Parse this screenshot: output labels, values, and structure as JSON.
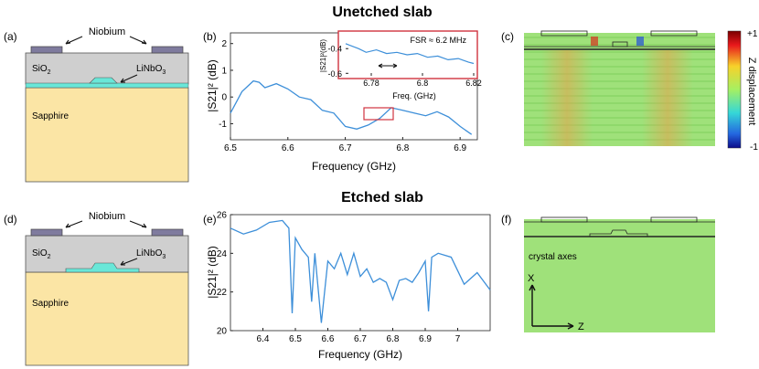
{
  "titles": {
    "top": "Unetched slab",
    "bottom": "Etched slab"
  },
  "panel_labels": {
    "a": "(a)",
    "b": "(b)",
    "c": "(c)",
    "d": "(d)",
    "e": "(e)",
    "f": "(f)"
  },
  "schematic": {
    "niobium": "Niobium",
    "sio2_main": "SiO",
    "sio2_sub": "2",
    "linbo3_main": "LiNbO",
    "linbo3_sub": "3",
    "sapphire": "Sapphire"
  },
  "colorbar": {
    "max": "+1",
    "min": "-1",
    "label": "Z displacement"
  },
  "crystal_axes": {
    "label": "crystal axes",
    "x": "X",
    "z": "Z"
  },
  "inset": {
    "fsr": "FSR ≈ 6.2 MHz",
    "xlabel": "Freq. (GHz)",
    "ylabel": "|S21|²(dB)"
  },
  "colors": {
    "line": "#3d8fd9",
    "inset_frame": "#d0343f",
    "niobium": "#7f7b9e",
    "sio2": "#cfcfcf",
    "linbo3": "#69e7d8",
    "sapphire": "#fbe5a5",
    "sim_bg": "#9fe17a"
  },
  "chart_data": [
    {
      "id": "b",
      "type": "line",
      "xlabel": "Frequency (GHz)",
      "ylabel": "|S21|² (dB)",
      "xlim": [
        6.5,
        6.93
      ],
      "ylim": [
        -1.6,
        2.4
      ],
      "xticks": [
        "6.5",
        "6.6",
        "6.7",
        "6.8",
        "6.9"
      ],
      "yticks": [
        "2",
        "1",
        "0",
        "-1"
      ],
      "x": [
        6.5,
        6.52,
        6.54,
        6.55,
        6.56,
        6.58,
        6.6,
        6.62,
        6.64,
        6.66,
        6.68,
        6.7,
        6.72,
        6.74,
        6.76,
        6.78,
        6.8,
        6.82,
        6.84,
        6.86,
        6.88,
        6.9,
        6.92
      ],
      "y": [
        -0.6,
        0.2,
        0.6,
        0.55,
        0.35,
        0.5,
        0.3,
        0.0,
        -0.1,
        -0.5,
        -0.6,
        -1.1,
        -1.2,
        -1.05,
        -0.8,
        -0.4,
        -0.5,
        -0.6,
        -0.7,
        -0.55,
        -0.75,
        -1.1,
        -1.4
      ]
    },
    {
      "id": "b-inset",
      "type": "line",
      "xlim": [
        6.77,
        6.82
      ],
      "ylim": [
        -0.62,
        -0.28
      ],
      "xticks": [
        "6.78",
        "6.8",
        "6.82"
      ],
      "yticks": [
        "-0.4",
        "-0.6"
      ],
      "x": [
        6.77,
        6.775,
        6.778,
        6.782,
        6.786,
        6.79,
        6.794,
        6.798,
        6.802,
        6.806,
        6.81,
        6.814,
        6.818,
        6.82
      ],
      "y": [
        -0.36,
        -0.4,
        -0.43,
        -0.41,
        -0.44,
        -0.43,
        -0.45,
        -0.44,
        -0.47,
        -0.46,
        -0.49,
        -0.48,
        -0.51,
        -0.52
      ]
    },
    {
      "id": "e",
      "type": "line",
      "xlabel": "Frequency (GHz)",
      "ylabel": "|S21|² (dB)",
      "xlim": [
        6.3,
        7.1
      ],
      "ylim": [
        20,
        26
      ],
      "xticks": [
        "6.4",
        "6.5",
        "6.6",
        "6.7",
        "6.8",
        "6.9",
        "7"
      ],
      "yticks": [
        "26",
        "24",
        "22",
        "20"
      ],
      "x": [
        6.3,
        6.34,
        6.38,
        6.42,
        6.46,
        6.48,
        6.49,
        6.5,
        6.52,
        6.54,
        6.55,
        6.56,
        6.58,
        6.6,
        6.62,
        6.64,
        6.66,
        6.68,
        6.7,
        6.72,
        6.74,
        6.76,
        6.78,
        6.8,
        6.82,
        6.84,
        6.86,
        6.88,
        6.9,
        6.91,
        6.92,
        6.94,
        6.98,
        7.02,
        7.06,
        7.1
      ],
      "y": [
        25.3,
        25.0,
        25.2,
        25.6,
        25.7,
        25.3,
        20.9,
        24.8,
        24.2,
        23.8,
        21.5,
        24.0,
        20.4,
        23.6,
        23.2,
        24.0,
        22.9,
        24.0,
        22.8,
        23.2,
        22.5,
        22.7,
        22.5,
        21.6,
        22.6,
        22.7,
        22.5,
        23.0,
        23.6,
        21.0,
        23.8,
        24.0,
        23.8,
        22.4,
        23.0,
        22.1
      ]
    }
  ]
}
